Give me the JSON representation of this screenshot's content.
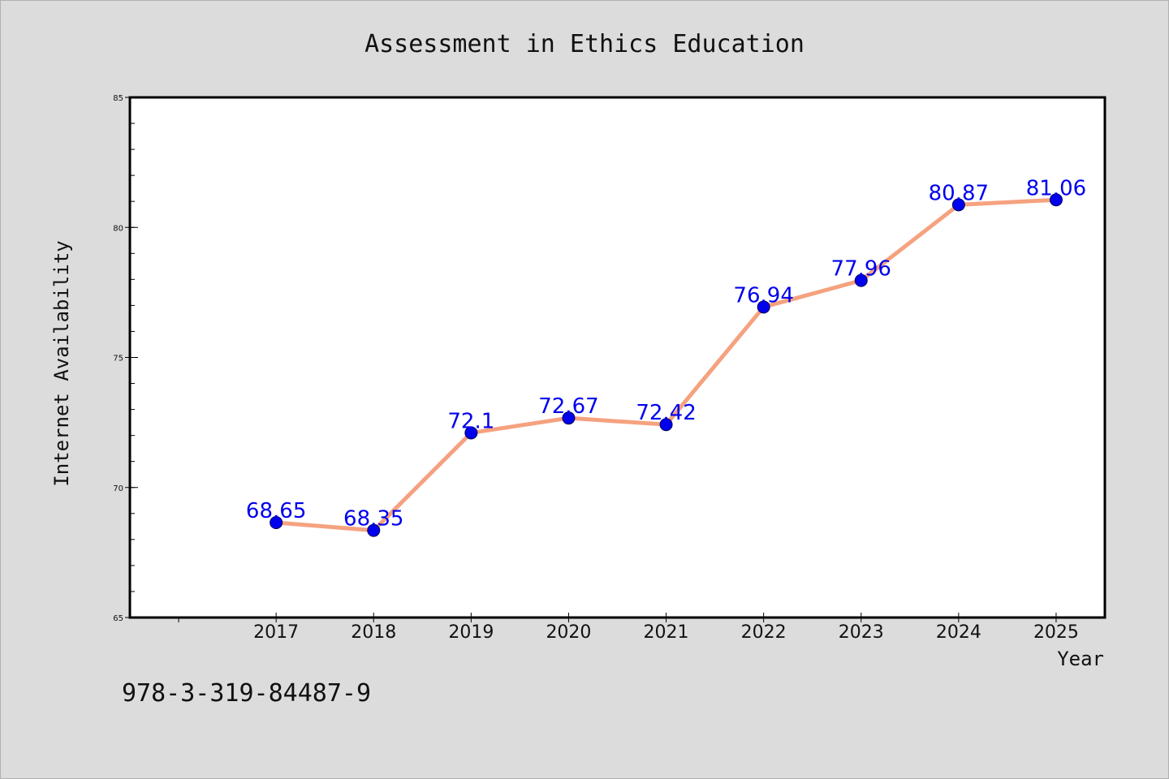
{
  "chart_data": {
    "type": "line",
    "title": "Assessment in Ethics Education",
    "xlabel": "Year",
    "ylabel": "Internet Availability",
    "categories": [
      "2017",
      "2018",
      "2019",
      "2020",
      "2021",
      "2022",
      "2023",
      "2024",
      "2025"
    ],
    "x": [
      2017,
      2018,
      2019,
      2020,
      2021,
      2022,
      2023,
      2024,
      2025
    ],
    "values": [
      68.65,
      68.35,
      72.1,
      72.67,
      72.42,
      76.94,
      77.96,
      80.87,
      81.06
    ],
    "data_labels": [
      "68.65",
      "68.35",
      "72.1",
      "72.67",
      "72.42",
      "76.94",
      "77.96",
      "80.87",
      "81.06"
    ],
    "xlim": [
      2015.5,
      2025.5
    ],
    "ylim": [
      65,
      85
    ],
    "yticks": [
      65,
      70,
      75,
      80,
      85
    ],
    "ytick_labels": [
      "65",
      "70",
      "75",
      "80",
      "85"
    ],
    "grid": false,
    "line_color": "#f5a27f",
    "marker_color": "#0000ee",
    "label_color": "#0000ee"
  },
  "footer_text": "978-3-319-84487-9"
}
